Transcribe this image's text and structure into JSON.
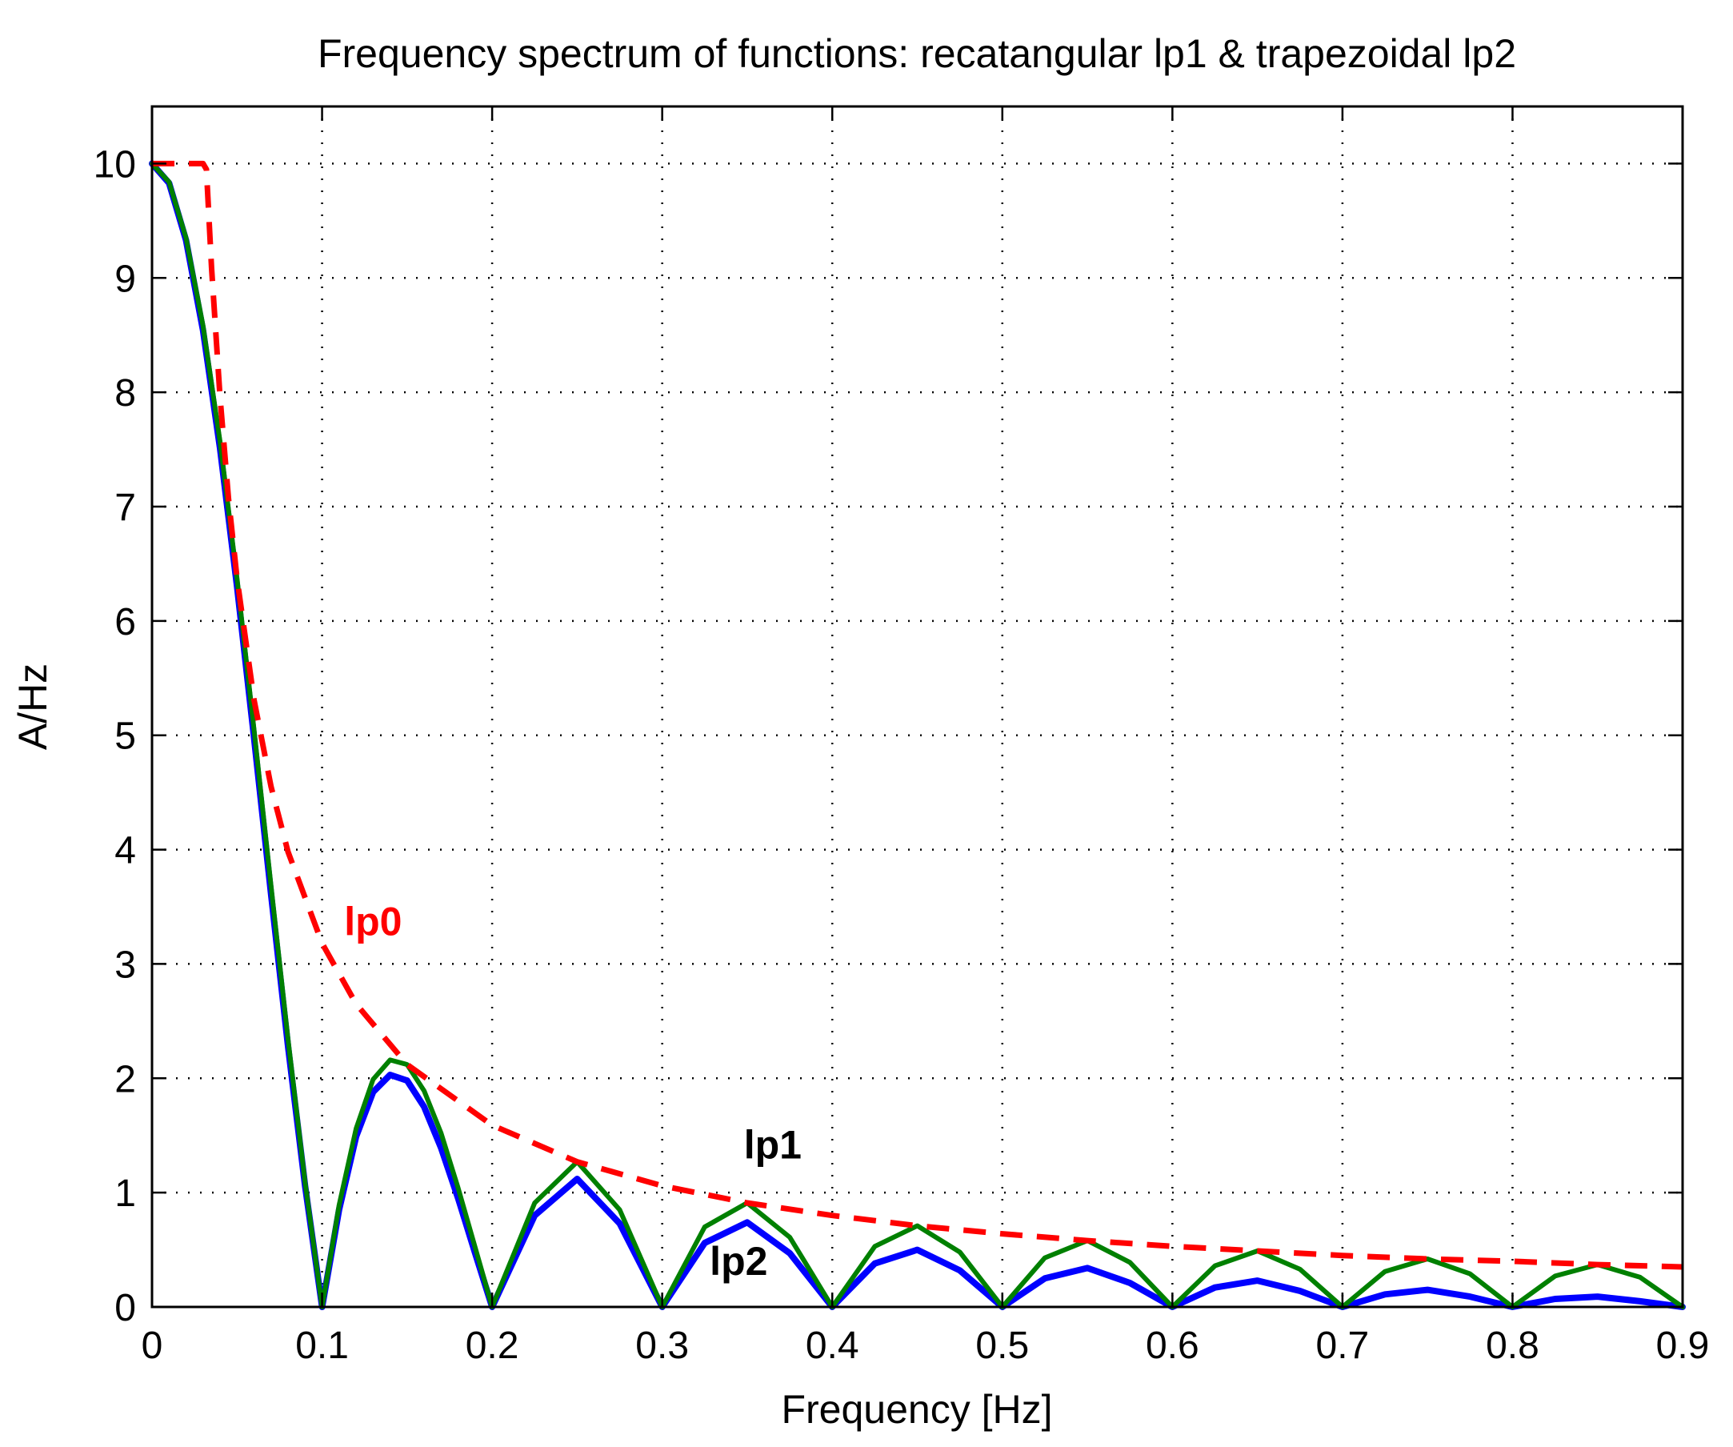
{
  "chart_data": {
    "type": "line",
    "title": "Frequency spectrum of functions: recatangular lp1 & trapezoidal lp2",
    "xlabel": "Frequency [Hz]",
    "ylabel": "A/Hz",
    "xlim": [
      0,
      0.9
    ],
    "ylim": [
      0,
      10.5
    ],
    "grid": true,
    "x_ticks": [
      0,
      0.1,
      0.2,
      0.3,
      0.4,
      0.5,
      0.6,
      0.7,
      0.8,
      0.9
    ],
    "x_tick_labels": [
      "0",
      "0.1",
      "0.2",
      "0.3",
      "0.4",
      "0.5",
      "0.6",
      "0.7",
      "0.8",
      "0.9"
    ],
    "y_ticks": [
      0,
      1,
      2,
      3,
      4,
      5,
      6,
      7,
      8,
      9,
      10
    ],
    "y_tick_labels": [
      "0",
      "1",
      "2",
      "3",
      "4",
      "5",
      "6",
      "7",
      "8",
      "9",
      "10"
    ],
    "colors": {
      "lp0": "#ff0000",
      "lp1": "#008000",
      "lp2": "#0000ff",
      "annotation_lp0": "#ff0000",
      "annotation_default": "#000000"
    },
    "series": [
      {
        "name": "lp0",
        "style": "dashed",
        "description": "envelope 1/(pi*f), capped at 10",
        "x": [
          0,
          0.03,
          0.032,
          0.035,
          0.04,
          0.045,
          0.05,
          0.06,
          0.07,
          0.08,
          0.1,
          0.12,
          0.15,
          0.2,
          0.25,
          0.3,
          0.35,
          0.4,
          0.45,
          0.5,
          0.55,
          0.6,
          0.65,
          0.7,
          0.75,
          0.8,
          0.85,
          0.9
        ],
        "y": [
          10,
          10,
          9.95,
          9.09,
          7.96,
          7.07,
          6.37,
          5.31,
          4.55,
          3.98,
          3.18,
          2.65,
          2.12,
          1.59,
          1.27,
          1.06,
          0.91,
          0.8,
          0.71,
          0.64,
          0.58,
          0.53,
          0.49,
          0.45,
          0.42,
          0.4,
          0.37,
          0.35
        ]
      },
      {
        "name": "lp1",
        "style": "solid",
        "description": "rectangular pulse spectrum |sin(10*pi*f)/(pi*f)|",
        "x": [
          0,
          0.01,
          0.02,
          0.03,
          0.04,
          0.05,
          0.06,
          0.07,
          0.08,
          0.09,
          0.1,
          0.11,
          0.12,
          0.13,
          0.14,
          0.15,
          0.16,
          0.17,
          0.18,
          0.19,
          0.2,
          0.225,
          0.25,
          0.275,
          0.3,
          0.325,
          0.35,
          0.375,
          0.4,
          0.425,
          0.45,
          0.475,
          0.5,
          0.525,
          0.55,
          0.575,
          0.6,
          0.625,
          0.65,
          0.675,
          0.7,
          0.725,
          0.75,
          0.775,
          0.8,
          0.825,
          0.85,
          0.875,
          0.9
        ],
        "y": [
          10,
          9.84,
          9.35,
          8.58,
          7.57,
          6.37,
          5.05,
          3.68,
          2.34,
          1.09,
          0,
          0.89,
          1.56,
          1.99,
          2.16,
          2.12,
          1.89,
          1.52,
          1.04,
          0.52,
          0,
          0.91,
          1.27,
          0.85,
          0,
          0.7,
          0.91,
          0.61,
          0,
          0.53,
          0.71,
          0.48,
          0,
          0.43,
          0.58,
          0.39,
          0,
          0.36,
          0.49,
          0.33,
          0,
          0.31,
          0.42,
          0.29,
          0,
          0.27,
          0.37,
          0.26,
          0
        ]
      },
      {
        "name": "lp2",
        "style": "solid",
        "description": "trapezoidal pulse spectrum (lp1 attenuated at higher frequencies)",
        "x": [
          0,
          0.01,
          0.02,
          0.03,
          0.04,
          0.05,
          0.06,
          0.07,
          0.08,
          0.09,
          0.1,
          0.11,
          0.12,
          0.13,
          0.14,
          0.15,
          0.16,
          0.17,
          0.18,
          0.19,
          0.2,
          0.225,
          0.25,
          0.275,
          0.3,
          0.325,
          0.35,
          0.375,
          0.4,
          0.425,
          0.45,
          0.475,
          0.5,
          0.525,
          0.55,
          0.575,
          0.6,
          0.625,
          0.65,
          0.675,
          0.7,
          0.725,
          0.75,
          0.775,
          0.8,
          0.825,
          0.85,
          0.875,
          0.9
        ],
        "y": [
          10,
          9.83,
          9.33,
          8.54,
          7.51,
          6.3,
          4.98,
          3.61,
          2.28,
          1.06,
          0,
          0.85,
          1.49,
          1.88,
          2.03,
          1.98,
          1.75,
          1.39,
          0.95,
          0.47,
          0,
          0.8,
          1.12,
          0.73,
          0,
          0.56,
          0.74,
          0.47,
          0,
          0.38,
          0.5,
          0.32,
          0,
          0.25,
          0.34,
          0.21,
          0,
          0.17,
          0.23,
          0.14,
          0,
          0.11,
          0.15,
          0.09,
          0,
          0.07,
          0.09,
          0.05,
          0
        ]
      }
    ],
    "annotations": [
      {
        "text": "lp0",
        "x": 0.113,
        "y": 3.25,
        "color_key": "annotation_lp0"
      },
      {
        "text": "lp1",
        "x": 0.348,
        "y": 1.3,
        "color_key": "annotation_default"
      },
      {
        "text": "lp2",
        "x": 0.328,
        "y": 0.28,
        "color_key": "annotation_default"
      }
    ]
  }
}
